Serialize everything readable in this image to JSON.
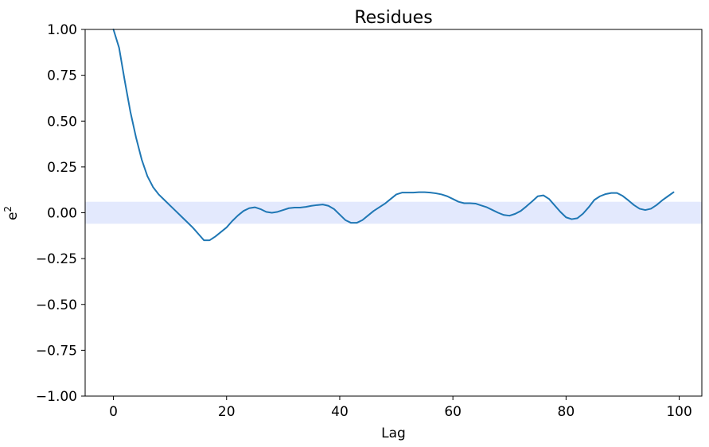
{
  "chart_data": {
    "type": "line",
    "title": "Residues",
    "xlabel": "Lag",
    "ylabel_base": "e",
    "ylabel_sup": "2",
    "xlim": [
      -5,
      104
    ],
    "ylim": [
      -1.0,
      1.0
    ],
    "xticks": [
      0,
      20,
      40,
      60,
      80,
      100
    ],
    "xtick_labels": [
      "0",
      "20",
      "40",
      "60",
      "80",
      "100"
    ],
    "yticks": [
      1.0,
      0.75,
      0.5,
      0.25,
      0.0,
      -0.25,
      -0.5,
      -0.75,
      -1.0
    ],
    "ytick_labels": [
      "1.00",
      "0.75",
      "0.50",
      "0.25",
      "0.00",
      "−0.25",
      "−0.50",
      "−0.75",
      "−1.00"
    ],
    "confidence_band": [
      -0.06,
      0.06
    ],
    "grid": false,
    "colors": {
      "line": "#1f77b4",
      "band": "#e3e9fd"
    },
    "series": [
      {
        "x": [
          0,
          1,
          2,
          3,
          4,
          5,
          6,
          7,
          8,
          9,
          10,
          11,
          12,
          13,
          14,
          15,
          16,
          17,
          18,
          19,
          20,
          21,
          22,
          23,
          24,
          25,
          26,
          27,
          28,
          29,
          30,
          31,
          32,
          33,
          34,
          35,
          36,
          37,
          38,
          39,
          40,
          41,
          42,
          43,
          44,
          45,
          46,
          47,
          48,
          49,
          50,
          51,
          52,
          53,
          54,
          55,
          56,
          57,
          58,
          59,
          60,
          61,
          62,
          63,
          64,
          65,
          66,
          67,
          68,
          69,
          70,
          71,
          72,
          73,
          74,
          75,
          76,
          77,
          78,
          79,
          80,
          81,
          82,
          83,
          84,
          85,
          86,
          87,
          88,
          89,
          90,
          91,
          92,
          93,
          94,
          95,
          96,
          97,
          98,
          99
        ],
        "y": [
          1.0,
          0.9,
          0.72,
          0.55,
          0.41,
          0.29,
          0.2,
          0.14,
          0.1,
          0.07,
          0.04,
          0.01,
          -0.02,
          -0.05,
          -0.08,
          -0.115,
          -0.15,
          -0.15,
          -0.13,
          -0.105,
          -0.08,
          -0.045,
          -0.015,
          0.01,
          0.025,
          0.03,
          0.02,
          0.005,
          0.0,
          0.005,
          0.015,
          0.025,
          0.028,
          0.028,
          0.032,
          0.038,
          0.042,
          0.045,
          0.038,
          0.02,
          -0.01,
          -0.04,
          -0.055,
          -0.055,
          -0.04,
          -0.015,
          0.01,
          0.03,
          0.05,
          0.075,
          0.1,
          0.11,
          0.11,
          0.11,
          0.112,
          0.112,
          0.11,
          0.106,
          0.1,
          0.09,
          0.075,
          0.06,
          0.052,
          0.052,
          0.05,
          0.04,
          0.03,
          0.015,
          0.0,
          -0.012,
          -0.016,
          -0.006,
          0.01,
          0.035,
          0.062,
          0.09,
          0.095,
          0.075,
          0.04,
          0.005,
          -0.025,
          -0.035,
          -0.03,
          -0.005,
          0.03,
          0.07,
          0.09,
          0.102,
          0.108,
          0.108,
          0.092,
          0.068,
          0.042,
          0.022,
          0.015,
          0.022,
          0.042,
          0.068,
          0.09,
          0.112
        ]
      }
    ]
  }
}
